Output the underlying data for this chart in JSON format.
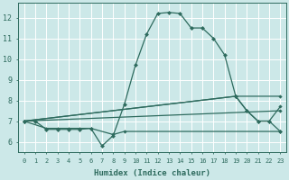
{
  "xlabel": "Humidex (Indice chaleur)",
  "background_color": "#cce8e8",
  "grid_color": "#b0d4d4",
  "line_color": "#2e6b5e",
  "xlim": [
    -0.5,
    23.5
  ],
  "ylim": [
    5.5,
    12.7
  ],
  "yticks": [
    6,
    7,
    8,
    9,
    10,
    11,
    12
  ],
  "xticks": [
    0,
    1,
    2,
    3,
    4,
    5,
    6,
    7,
    8,
    9,
    10,
    11,
    12,
    13,
    14,
    15,
    16,
    17,
    18,
    19,
    20,
    21,
    22,
    23
  ],
  "main_series": [
    [
      0,
      7.0
    ],
    [
      1,
      7.0
    ],
    [
      2,
      6.6
    ],
    [
      3,
      6.6
    ],
    [
      4,
      6.6
    ],
    [
      5,
      6.6
    ],
    [
      6,
      6.65
    ],
    [
      7,
      5.8
    ],
    [
      8,
      6.3
    ],
    [
      9,
      7.8
    ],
    [
      10,
      9.7
    ],
    [
      11,
      11.2
    ],
    [
      12,
      12.2
    ],
    [
      13,
      12.25
    ],
    [
      14,
      12.2
    ],
    [
      15,
      11.5
    ],
    [
      16,
      11.5
    ],
    [
      17,
      11.0
    ],
    [
      18,
      10.2
    ],
    [
      19,
      8.2
    ],
    [
      20,
      7.5
    ],
    [
      21,
      7.0
    ],
    [
      22,
      7.0
    ],
    [
      23,
      6.5
    ]
  ],
  "line_flat": [
    [
      0,
      7.0
    ],
    [
      2,
      6.65
    ],
    [
      3,
      6.65
    ],
    [
      4,
      6.65
    ],
    [
      5,
      6.65
    ],
    [
      6,
      6.65
    ],
    [
      8,
      6.35
    ],
    [
      9,
      6.5
    ],
    [
      23,
      6.5
    ]
  ],
  "line_slope1": [
    [
      0,
      7.0
    ],
    [
      23,
      7.5
    ]
  ],
  "line_slope2": [
    [
      0,
      7.0
    ],
    [
      19,
      8.2
    ],
    [
      20,
      7.5
    ],
    [
      21,
      7.0
    ],
    [
      22,
      7.0
    ],
    [
      23,
      7.7
    ]
  ],
  "line_slope3": [
    [
      0,
      7.0
    ],
    [
      19,
      8.2
    ],
    [
      23,
      8.2
    ]
  ]
}
